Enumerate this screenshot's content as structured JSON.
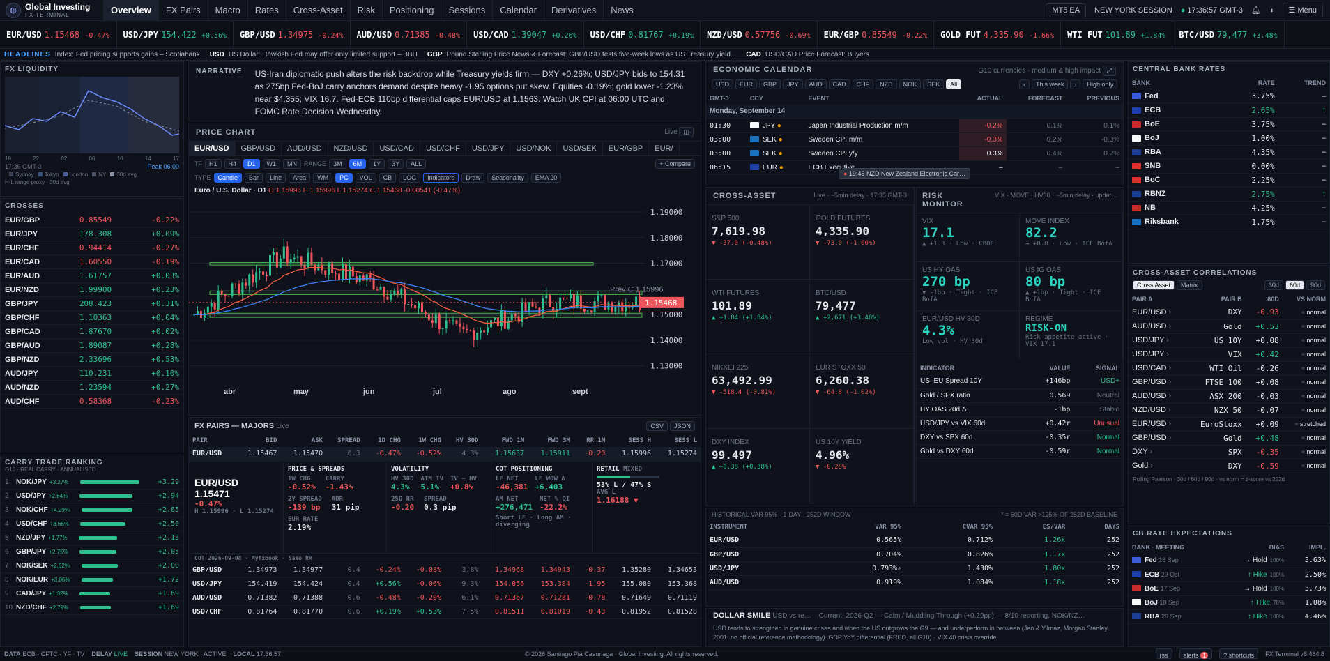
{
  "brand": {
    "name": "Global Investing",
    "sub": "FX TERMINAL"
  },
  "nav": {
    "tabs": [
      "Overview",
      "FX Pairs",
      "Macro",
      "Rates",
      "Cross-Asset",
      "Risk",
      "Positioning",
      "Sessions",
      "Calendar",
      "Derivatives",
      "News"
    ],
    "badge": "MT5 EA",
    "session": "NEW YORK SESSION",
    "clock": "17:36:57 GMT-3",
    "menu": "Menu"
  },
  "ticker": [
    {
      "s": "EUR/USD",
      "p": "1.15468",
      "c": "-0.47%"
    },
    {
      "s": "USD/JPY",
      "p": "154.422",
      "c": "+0.56%"
    },
    {
      "s": "GBP/USD",
      "p": "1.34975",
      "c": "-0.24%"
    },
    {
      "s": "AUD/USD",
      "p": "0.71385",
      "c": "-0.48%"
    },
    {
      "s": "USD/CAD",
      "p": "1.39047",
      "c": "+0.26%"
    },
    {
      "s": "USD/CHF",
      "p": "0.81767",
      "c": "+0.19%"
    },
    {
      "s": "NZD/USD",
      "p": "0.57756",
      "c": "-0.69%"
    },
    {
      "s": "EUR/GBP",
      "p": "0.85549",
      "c": "-0.22%"
    },
    {
      "s": "GOLD FUT",
      "p": "4,335.90",
      "c": "-1.66%"
    },
    {
      "s": "WTI FUT",
      "p": "101.89",
      "c": "+1.84%"
    },
    {
      "s": "BTC/USD",
      "p": "79,477",
      "c": "+3.48%"
    }
  ],
  "news": {
    "label": "HEADLINES",
    "items": [
      [
        "",
        "Index: Fed pricing supports gains – Scotiabank"
      ],
      [
        "USD",
        "US Dollar: Hawkish Fed may offer only limited support – BBH"
      ],
      [
        "GBP",
        "Pound Sterling Price News & Forecast: GBP/USD tests five-week lows as US Treasury yield..."
      ],
      [
        "CAD",
        "USD/CAD Price Forecast: Buyers"
      ]
    ]
  },
  "liquidity": {
    "title": "FX LIQUIDITY",
    "axis": [
      "18",
      "22",
      "02",
      "06",
      "10",
      "14",
      "17"
    ],
    "clock": "17:36 GMT-3",
    "peak": "Peak 06:00",
    "legend": [
      "Sydney",
      "Tokyo",
      "London",
      "NY",
      "30d avg"
    ],
    "note": "H-L range proxy · 30d avg"
  },
  "crosses": {
    "title": "CROSSES",
    "rows": [
      [
        "EUR/GBP",
        "0.85549",
        "-0.22%"
      ],
      [
        "EUR/JPY",
        "178.308",
        "+0.09%"
      ],
      [
        "EUR/CHF",
        "0.94414",
        "-0.27%"
      ],
      [
        "EUR/CAD",
        "1.60550",
        "-0.19%"
      ],
      [
        "EUR/AUD",
        "1.61757",
        "+0.03%"
      ],
      [
        "EUR/NZD",
        "1.99900",
        "+0.23%"
      ],
      [
        "GBP/JPY",
        "208.423",
        "+0.31%"
      ],
      [
        "GBP/CHF",
        "1.10363",
        "+0.04%"
      ],
      [
        "GBP/CAD",
        "1.87670",
        "+0.02%"
      ],
      [
        "GBP/AUD",
        "1.89087",
        "+0.28%"
      ],
      [
        "GBP/NZD",
        "2.33696",
        "+0.53%"
      ],
      [
        "AUD/JPY",
        "110.231",
        "+0.10%"
      ],
      [
        "AUD/NZD",
        "1.23594",
        "+0.27%"
      ],
      [
        "AUD/CHF",
        "0.58368",
        "-0.23%"
      ]
    ]
  },
  "carry": {
    "title": "CARRY TRADE RANKING",
    "sub": "G10 · REAL CARRY · ANNUALISED",
    "rows": [
      [
        "1",
        "NOK/JPY",
        "+3.27%",
        "+3.29",
        0.95
      ],
      [
        "2",
        "USD/JPY",
        "+2.64%",
        "+2.94",
        0.85
      ],
      [
        "3",
        "NOK/CHF",
        "+4.29%",
        "+2.85",
        0.82
      ],
      [
        "4",
        "USD/CHF",
        "+3.66%",
        "+2.50",
        0.72
      ],
      [
        "5",
        "NZD/JPY",
        "+1.77%",
        "+2.13",
        0.61
      ],
      [
        "6",
        "GBP/JPY",
        "+2.75%",
        "+2.05",
        0.59
      ],
      [
        "7",
        "NOK/SEK",
        "+2.62%",
        "+2.00",
        0.58
      ],
      [
        "8",
        "NOK/EUR",
        "+3.06%",
        "+1.72",
        0.5
      ],
      [
        "9",
        "CAD/JPY",
        "+1.32%",
        "+1.69",
        0.49
      ],
      [
        "10",
        "NZD/CHF",
        "+2.79%",
        "+1.69",
        0.49
      ]
    ]
  },
  "narrative": {
    "label": "NARRATIVE",
    "text": "US-Iran diplomatic push alters the risk backdrop while Treasury yields firm — DXY +0.26%; USD/JPY bids to 154.31 as 275bp Fed-BoJ carry anchors demand despite heavy -1.95 options put skew. Equities -0.19%; gold lower -1.23% near $4,355; VIX 16.7. Fed-ECB 110bp differential caps EUR/USD at 1.1563. Watch UK CPI at 06:00 UTC and FOMC Rate Decision Wednesday."
  },
  "pricechart": {
    "title": "PRICE CHART",
    "live": "Live",
    "pairs": [
      "EUR/USD",
      "GBP/USD",
      "AUD/USD",
      "NZD/USD",
      "USD/CAD",
      "USD/CHF",
      "USD/JPY",
      "USD/NOK",
      "USD/SEK",
      "EUR/GBP",
      "EUR/"
    ],
    "tf": [
      "TF",
      "H1",
      "H4",
      "D1",
      "W1",
      "MN",
      "RANGE",
      "3M",
      "6M",
      "1Y",
      "3Y",
      "ALL",
      "+ Compare"
    ],
    "types": [
      "TYPE",
      "Candle",
      "Bar",
      "Line",
      "Area",
      "WM",
      "PC",
      "VOL",
      "CB",
      "LOG",
      "Indicators",
      "Draw",
      "Seasonality",
      "EMA 20"
    ],
    "ohlc": "Euro / U.S. Dollar · D1",
    "o": "O 1.15996",
    "h": "H 1.15996",
    "l": "L 1.15274",
    "c": "C 1.15468",
    "chg": "-0.00541 (-0.47%)",
    "prev": "Prev C 1.15996",
    "last": "1.15468",
    "yticks": [
      "1.19000",
      "1.18000",
      "1.17000",
      "1.15000",
      "1.14000",
      "1.13000"
    ],
    "xticks": [
      "abr",
      "may",
      "jun",
      "jul",
      "ago",
      "sept"
    ]
  },
  "chart_data": {
    "type": "line",
    "title": "Euro / U.S. Dollar · D1",
    "x": [
      "abr",
      "may",
      "jun",
      "jul",
      "ago",
      "sept"
    ],
    "series": [
      {
        "name": "EUR/USD",
        "values": [
          1.15,
          1.173,
          1.163,
          1.142,
          1.155,
          1.1547
        ]
      }
    ],
    "ylim": [
      1.125,
      1.193
    ],
    "annotations": [
      "Prev C 1.15996",
      "1.15468"
    ]
  },
  "majors": {
    "title": "FX PAIRS — MAJORS",
    "live": "Live",
    "btns": [
      "CSV",
      "JSON"
    ],
    "cols": [
      "PAIR",
      "BID",
      "ASK",
      "SPREAD",
      "1D CHG",
      "1W CHG",
      "HV 30D",
      "FWD 1M",
      "FWD 3M",
      "RR 1M",
      "SESS H",
      "SESS L"
    ],
    "eur": [
      "EUR/USD",
      "1.15467",
      "1.15470",
      "0.3",
      "-0.47%",
      "-0.52%",
      "4.3%",
      "1.15637",
      "1.15911",
      "-0.20",
      "1.15996",
      "1.15274"
    ],
    "rows": [
      [
        "GBP/USD",
        "1.34973",
        "1.34977",
        "0.4",
        "-0.24%",
        "-0.08%",
        "3.8%",
        "1.34968",
        "1.34943",
        "-0.37",
        "1.35280",
        "1.34653"
      ],
      [
        "USD/JPY",
        "154.419",
        "154.424",
        "0.4",
        "+0.56%",
        "-0.06%",
        "9.3%",
        "154.056",
        "153.384",
        "-1.95",
        "155.080",
        "153.368"
      ],
      [
        "AUD/USD",
        "0.71382",
        "0.71388",
        "0.6",
        "-0.48%",
        "-0.20%",
        "6.1%",
        "0.71367",
        "0.71281",
        "-0.78",
        "0.71649",
        "0.71119"
      ],
      [
        "USD/CHF",
        "0.81764",
        "0.81770",
        "0.6",
        "+0.19%",
        "+0.53%",
        "7.5%",
        "0.81511",
        "0.81019",
        "-0.43",
        "0.81952",
        "0.81528"
      ]
    ],
    "detail": {
      "pair": "EUR/USD",
      "price": "1.15471",
      "chg": "-0.47%",
      "hl": "H 1.15996 · L 1.15274",
      "ps": "PRICE & SPREADS",
      "c1d": "1W CHG",
      "v1": "-0.52%",
      "carry": "CARRY",
      "v2": "-1.43%",
      "sp2": "2Y SPREAD",
      "v3": "-139 bp",
      "adr": "ADR",
      "v4": "31 pip",
      "eurrate": "EUR RATE",
      "v5": "2.19%",
      "vol": "VOLATILITY",
      "hv": "HV 30D",
      "hvv": "4.3%",
      "atm": "ATM IV",
      "atmv": "5.1%",
      "ivhv": "IV − HV",
      "ivhvv": "+0.8%",
      "rr": "25D RR",
      "rrv": "-0.20",
      "spr": "SPREAD",
      "sprv": "0.3 pip",
      "cot": "COT POSITIONING",
      "lfn": "LF NET",
      "lfnv": "-46,381",
      "lfw": "LF WOW Δ",
      "lfwv": "+6,403",
      "amn": "AM NET",
      "amnv": "+276,471",
      "noi": "NET % OI",
      "noiv": "-22.2%",
      "cotnote": "Short LF · Long AM · diverging",
      "retail": "RETAIL",
      "mixed": "MIXED",
      "retailv": "53% L / 47% S",
      "avgl": "AVG L",
      "avglv": "1.16188 ▼",
      "foot": "COT 2026-09-08 · Myfxbook · Saxo RR"
    }
  },
  "calendar": {
    "title": "ECONOMIC CALENDAR",
    "sub": "G10 currencies · medium & high impact",
    "ccys": [
      "USD",
      "EUR",
      "GBP",
      "JPY",
      "AUD",
      "CAD",
      "CHF",
      "NZD",
      "NOK",
      "SEK",
      "All"
    ],
    "week": "This week",
    "hi": "High only",
    "cols": [
      "GMT-3",
      "CCY",
      "EVENT",
      "ACTUAL",
      "FORECAST",
      "PREVIOUS"
    ],
    "day": "Monday, September 14",
    "rows": [
      [
        "01:30",
        "JPY",
        "Japan Industrial Production m/m",
        "-0.2%",
        "0.1%",
        "0.1%"
      ],
      [
        "03:00",
        "SEK",
        "Sweden CPI m/m",
        "-0.3%",
        "0.2%",
        "-0.3%"
      ],
      [
        "03:00",
        "SEK",
        "Sweden CPI y/y",
        "0.3%",
        "0.4%",
        "0.2%"
      ],
      [
        "06:15",
        "EUR",
        "ECB Executive…",
        "–",
        "–",
        "–"
      ]
    ],
    "tip": "19:45 NZD New Zealand Electronic Car…"
  },
  "crossasset": {
    "title": "CROSS-ASSET",
    "sub": "Live · ~5min delay · 17:35 GMT-3",
    "tiles": [
      [
        "S&P 500",
        "7,619.98",
        "▼ -37.0 (-0.48%)",
        "neg"
      ],
      [
        "GOLD FUTURES",
        "4,335.90",
        "▼ -73.0 (-1.66%)",
        "neg"
      ],
      [
        "WTI FUTURES",
        "101.89",
        "▲ +1.84 (+1.84%)",
        "pos"
      ],
      [
        "BTC/USD",
        "79,477",
        "▲ +2,671 (+3.48%)",
        "pos"
      ],
      [
        "NIKKEI 225",
        "63,492.99",
        "▼ -518.4 (-0.81%)",
        "neg"
      ],
      [
        "EUR STOXX 50",
        "6,260.38",
        "▼ -64.8 (-1.02%)",
        "neg"
      ],
      [
        "DXY INDEX",
        "99.497",
        "▲ +0.38 (+0.38%)",
        "pos"
      ],
      [
        "US 10Y YIELD",
        "4.96%",
        "▼ -0.28%",
        "neg"
      ]
    ]
  },
  "risk": {
    "title": "RISK MONITOR",
    "sub": "VIX · MOVE · HV30 · ~5min delay · updat…",
    "tiles": [
      [
        "VIX",
        "17.1",
        "▲ +1.3 · Low · CBOE"
      ],
      [
        "MOVE INDEX",
        "82.2",
        "→ +0.0 · Low · ICE BofA"
      ],
      [
        "US HY OAS",
        "270 bp",
        "▼ -1bp · Tight · ICE BofA"
      ],
      [
        "US IG OAS",
        "80 bp",
        "▲ +1bp · Tight · ICE BofA"
      ],
      [
        "EUR/USD HV 30D",
        "4.3%",
        "Low vol · HV 30d"
      ],
      [
        "REGIME",
        "RISK-ON",
        "Risk appetite active · VIX 17.1"
      ]
    ],
    "cols": [
      "INDICATOR",
      "VALUE",
      "SIGNAL"
    ],
    "rows": [
      [
        "US–EU Spread 10Y",
        "+146bp",
        "USD+",
        "pos"
      ],
      [
        "Gold / SPX ratio",
        "0.569",
        "Neutral",
        "mut"
      ],
      [
        "HY OAS 20d Δ",
        "-1bp",
        "Stable",
        "mut"
      ],
      [
        "USD/JPY vs VIX 60d",
        "+0.42r",
        "Unusual",
        "neg"
      ],
      [
        "DXY vs SPX 60d",
        "-0.35r",
        "Normal",
        "pos"
      ],
      [
        "Gold vs DXY 60d",
        "-0.59r",
        "Normal",
        "pos"
      ]
    ]
  },
  "var": {
    "title": "HISTORICAL VAR 95% · 1-DAY · 252D WINDOW",
    "note": "* = 60D VAR >125% OF 252D BASELINE",
    "cols": [
      "INSTRUMENT",
      "VAR 95%",
      "CVAR 95%",
      "ES/VAR",
      "DAYS"
    ],
    "rows": [
      [
        "EUR/USD",
        "0.565%",
        "0.712%",
        "1.26x",
        "252"
      ],
      [
        "GBP/USD",
        "0.704%",
        "0.826%",
        "1.17x",
        "252"
      ],
      [
        "USD/JPY",
        "0.793%⚠",
        "1.430%",
        "1.80x",
        "252"
      ],
      [
        "AUD/USD",
        "0.919%",
        "1.084%",
        "1.18x",
        "252"
      ]
    ]
  },
  "smile": {
    "title": "DOLLAR SMILE",
    "sub": "USD vs re…",
    "current": "Current: 2026-Q2 — Calm / Muddling Through (+0.29pp) — 8/10 reporting, NOK/NZ…",
    "text": "USD tends to strengthen in genuine crises and when the US outgrows the G9 — and underperform in between (Jen & Yilmaz, Morgan Stanley 2001; no official reference methodology). GDP YoY differential (FRED, all G10) · VIX 40 crisis override"
  },
  "cbrates": {
    "title": "CENTRAL BANK RATES",
    "cols": [
      "BANK",
      "RATE",
      "TREND"
    ],
    "rows": [
      [
        "Fed",
        "3.75%",
        "–",
        "#3b5bdb",
        "wht"
      ],
      [
        "ECB",
        "2.65%",
        "↑",
        "#1e40af",
        "pos"
      ],
      [
        "BoE",
        "3.75%",
        "–",
        "#c92a2a",
        "wht"
      ],
      [
        "BoJ",
        "1.00%",
        "–",
        "#f8f9fa",
        "wht"
      ],
      [
        "RBA",
        "4.35%",
        "–",
        "#1c3f94",
        "wht"
      ],
      [
        "SNB",
        "0.00%",
        "–",
        "#e03131",
        "wht"
      ],
      [
        "BoC",
        "2.25%",
        "–",
        "#e03131",
        "wht"
      ],
      [
        "RBNZ",
        "2.75%",
        "↑",
        "#1c3f94",
        "pos"
      ],
      [
        "NB",
        "4.25%",
        "–",
        "#c92a2a",
        "wht"
      ],
      [
        "Riksbank",
        "1.75%",
        "–",
        "#1971c2",
        "wht"
      ]
    ]
  },
  "corr": {
    "title": "CROSS-ASSET CORRELATIONS",
    "tabs": [
      "30d",
      "60d",
      "90d"
    ],
    "modes": [
      "Cross Asset",
      "Matrix"
    ],
    "cols": [
      "PAIR A",
      "PAIR B",
      "60D",
      "VS NORM"
    ],
    "rows": [
      [
        "EUR/USD",
        "DXY",
        "-0.93",
        "neg",
        "normal"
      ],
      [
        "AUD/USD",
        "Gold",
        "+0.53",
        "pos",
        "normal"
      ],
      [
        "USD/JPY",
        "US 10Y",
        "+0.08",
        "wht",
        "normal"
      ],
      [
        "USD/JPY",
        "VIX",
        "+0.42",
        "pos",
        "normal"
      ],
      [
        "USD/CAD",
        "WTI Oil",
        "-0.26",
        "wht",
        "normal"
      ],
      [
        "GBP/USD",
        "FTSE 100",
        "+0.08",
        "wht",
        "normal"
      ],
      [
        "AUD/USD",
        "ASX 200",
        "-0.03",
        "wht",
        "normal"
      ],
      [
        "NZD/USD",
        "NZX 50",
        "-0.07",
        "wht",
        "normal"
      ],
      [
        "EUR/USD",
        "EuroStoxx",
        "+0.09",
        "wht",
        "stretched"
      ],
      [
        "GBP/USD",
        "Gold",
        "+0.48",
        "pos",
        "normal"
      ],
      [
        "DXY",
        "SPX",
        "-0.35",
        "neg",
        "normal"
      ],
      [
        "Gold",
        "DXY",
        "-0.59",
        "neg",
        "normal"
      ]
    ],
    "foot": "Rolling Pearson · 30d / 60d / 90d · vs norm = z-score vs 252d"
  },
  "cbexp": {
    "title": "CB RATE EXPECTATIONS",
    "cols": [
      "BANK · MEETING",
      "BIAS",
      "IMPL."
    ],
    "rows": [
      [
        "Fed",
        "16 Sep",
        "→ Hold",
        "100%",
        "3.63%",
        "#3b5bdb",
        "wht"
      ],
      [
        "ECB",
        "29 Oct",
        "↑ Hike",
        "100%",
        "2.50%",
        "#1e40af",
        "pos"
      ],
      [
        "BoE",
        "17 Sep",
        "→ Hold",
        "100%",
        "3.73%",
        "#c92a2a",
        "wht"
      ],
      [
        "BoJ",
        "18 Sep",
        "↑ Hike",
        "78%",
        "1.08%",
        "#f8f9fa",
        "pos"
      ],
      [
        "RBA",
        "29 Sep",
        "↑ Hike",
        "100%",
        "4.46%",
        "#1c3f94",
        "pos"
      ]
    ]
  },
  "status": {
    "data": "DATA",
    "src": "ECB · CFTC · YF · TV",
    "delay": "DELAY",
    "live": "LIVE",
    "session": "SESSION",
    "sessv": "NEW YORK · ACTIVE",
    "local": "LOCAL",
    "localv": "17:36:57",
    "copy": "© 2026 Santiago Piá Casuriaga · Global Investing. All rights reserved.",
    "rss": "rss",
    "alerts": "alerts",
    "alertn": "1",
    "shortcuts": "? shortcuts",
    "ver": "FX Terminal v8.484.8"
  }
}
